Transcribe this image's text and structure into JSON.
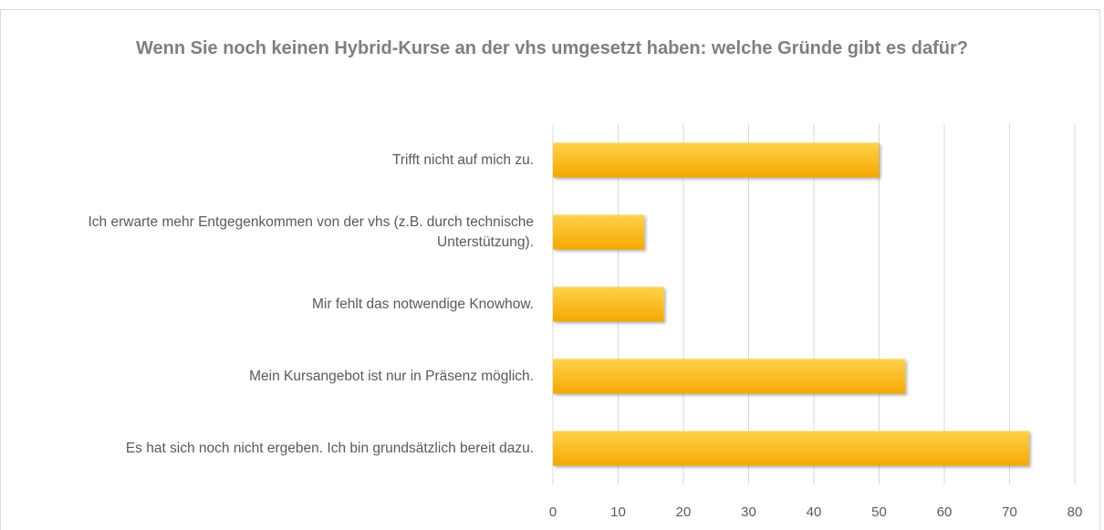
{
  "chart_data": {
    "type": "bar",
    "orientation": "horizontal",
    "title": "Wenn Sie noch keinen Hybrid-Kurse an der vhs umgesetzt haben: welche Gründe gibt es dafür?",
    "categories": [
      "Trifft nicht auf mich zu.",
      "Ich erwarte mehr Entgegenkommen von der vhs (z.B. durch technische Unterstützung).",
      "Mir fehlt das notwendige Knowhow.",
      "Mein Kursangebot ist nur in Präsenz möglich.",
      "Es hat sich noch nicht ergeben. Ich bin grundsätzlich bereit dazu."
    ],
    "values": [
      50,
      14,
      17,
      54,
      73
    ],
    "color": "#ffc000",
    "xlim": [
      0,
      80
    ],
    "xticks": [
      0,
      10,
      20,
      30,
      40,
      50,
      60,
      70,
      80
    ],
    "grid": true
  }
}
